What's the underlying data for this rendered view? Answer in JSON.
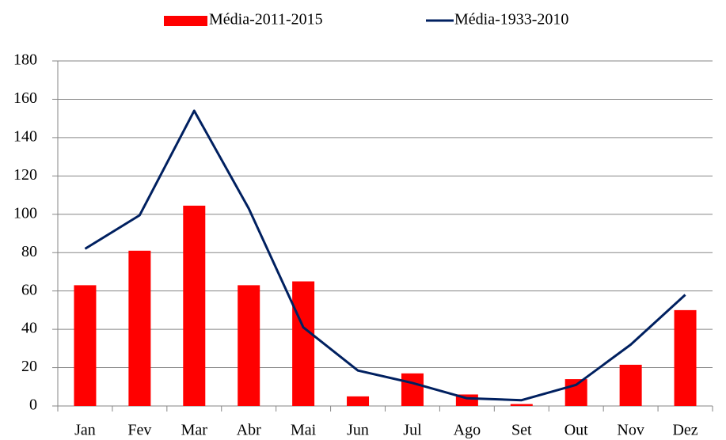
{
  "chart_data": {
    "type": "bar",
    "categories": [
      "Jan",
      "Fev",
      "Mar",
      "Abr",
      "Mai",
      "Jun",
      "Jul",
      "Ago",
      "Set",
      "Out",
      "Nov",
      "Dez"
    ],
    "series": [
      {
        "name": "Média-2011-2015",
        "type": "bar",
        "color": "#ff0000",
        "values": [
          63,
          81,
          104.5,
          63,
          65,
          5,
          17,
          6,
          1,
          14,
          21.5,
          50
        ]
      },
      {
        "name": "Média-1933-2010",
        "type": "line",
        "color": "#002060",
        "values": [
          82,
          99.5,
          154,
          103,
          41,
          18.5,
          12,
          4,
          3,
          11,
          32,
          58
        ]
      }
    ],
    "ylim": [
      0,
      180
    ],
    "yticks": [
      0,
      20,
      40,
      60,
      80,
      100,
      120,
      140,
      160,
      180
    ],
    "grid": true,
    "legend": "top"
  }
}
